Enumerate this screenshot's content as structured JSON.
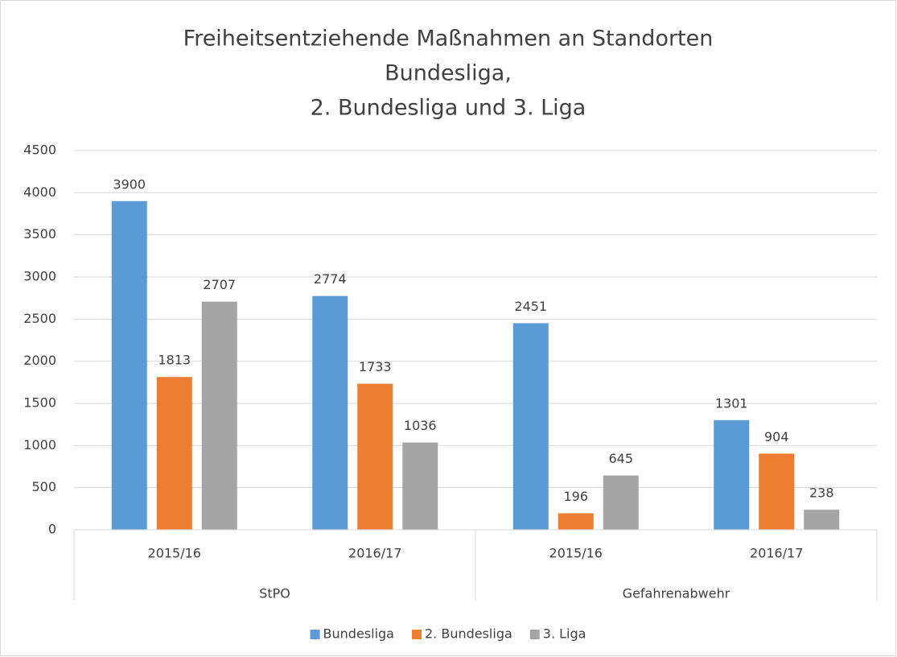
{
  "chart_data": {
    "type": "bar",
    "title": [
      "Freiheitsentziehende Maßnahmen an Standorten",
      "Bundesliga,",
      "2. Bundesliga und 3. Liga"
    ],
    "categories": [
      "2015/16",
      "2016/17",
      "2015/16",
      "2016/17"
    ],
    "groups": [
      "StPO",
      "Gefahrenabwehr"
    ],
    "series": [
      {
        "name": "Bundesliga",
        "color": "#5b9bd5",
        "values": [
          3900,
          2774,
          2451,
          1301
        ]
      },
      {
        "name": "2. Bundesliga",
        "color": "#ed7d31",
        "values": [
          1813,
          1733,
          196,
          904
        ]
      },
      {
        "name": "3. Liga",
        "color": "#a5a5a5",
        "values": [
          2707,
          1036,
          645,
          238
        ]
      }
    ],
    "ylim": [
      0,
      4500
    ],
    "yticks": [
      0,
      500,
      1000,
      1500,
      2000,
      2500,
      3000,
      3500,
      4000,
      4500
    ],
    "grid": true,
    "legend": "bottom"
  }
}
